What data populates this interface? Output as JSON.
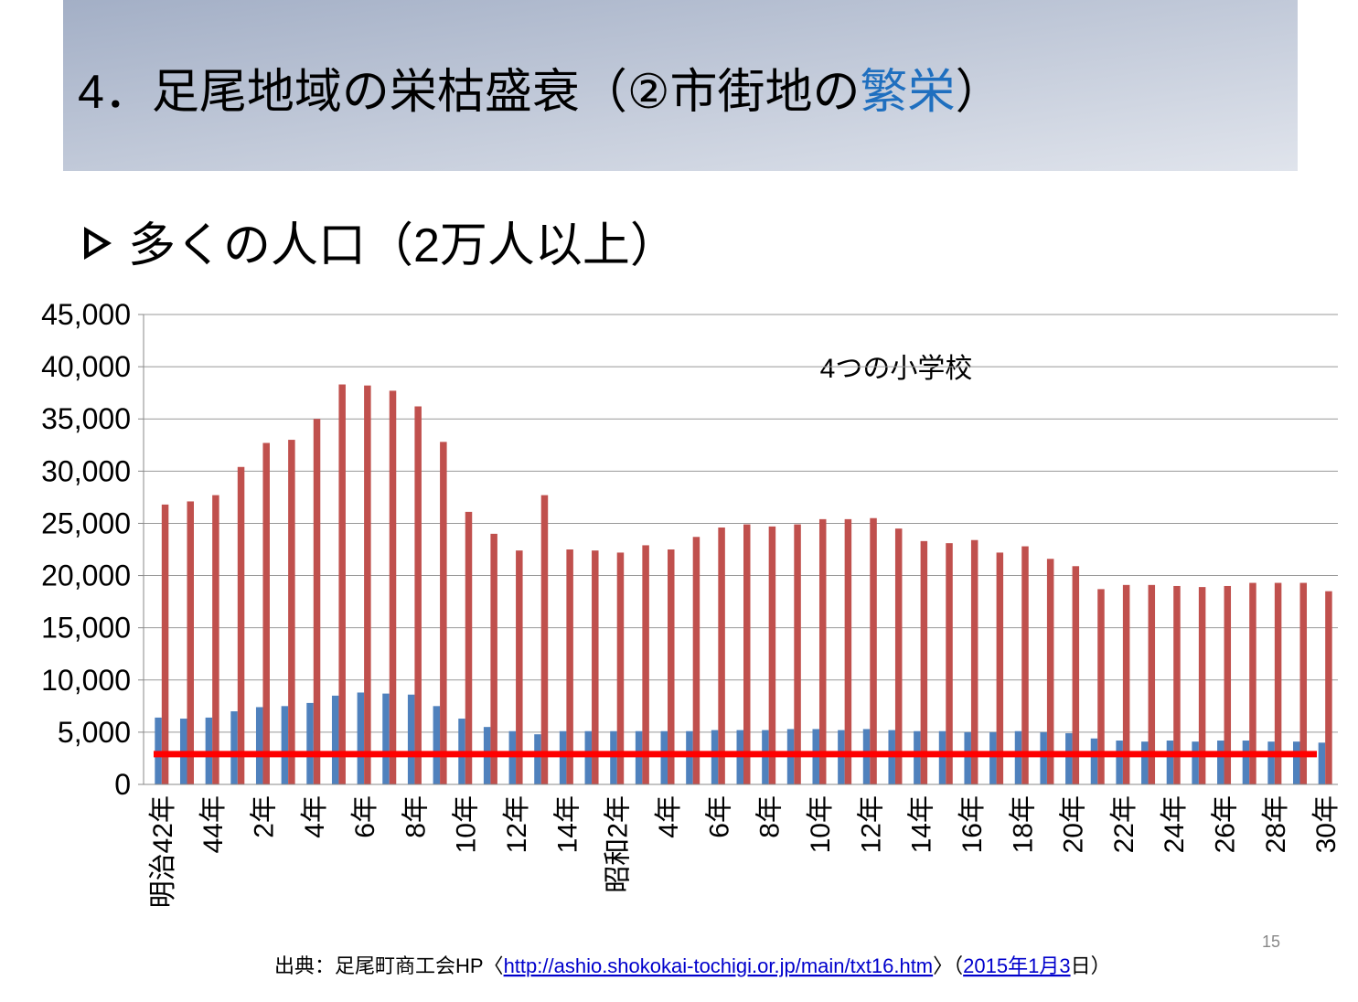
{
  "header": {
    "title_parts": [
      "4．足尾地域の栄枯盛衰（②市街地の",
      "繁栄",
      "）"
    ],
    "title_colors": [
      "#000000",
      "#1f6fbf",
      "#000000"
    ]
  },
  "bullet": "多くの人口（2万人以上）",
  "chart_data": {
    "type": "bar",
    "annotation": "4つの小学校",
    "categories": [
      "明治42年",
      null,
      "44年",
      null,
      "2年",
      null,
      "4年",
      null,
      "6年",
      null,
      "8年",
      null,
      "10年",
      null,
      "12年",
      null,
      "14年",
      null,
      "昭和2年",
      null,
      "4年",
      null,
      "6年",
      null,
      "8年",
      null,
      "10年",
      null,
      "12年",
      null,
      "14年",
      null,
      "16年",
      null,
      "18年",
      null,
      "20年",
      null,
      "22年",
      null,
      "24年",
      null,
      "26年",
      null,
      "28年",
      null,
      "30年"
    ],
    "series": [
      {
        "color": "#4f81bd",
        "values": [
          6400,
          6300,
          6400,
          7000,
          7400,
          7500,
          7800,
          8500,
          8800,
          8700,
          8600,
          7500,
          6300,
          5500,
          5100,
          4800,
          5100,
          5100,
          5100,
          5100,
          5100,
          5100,
          5200,
          5200,
          5200,
          5300,
          5300,
          5200,
          5300,
          5200,
          5100,
          5100,
          5000,
          5000,
          5100,
          5000,
          4900,
          4400,
          4200,
          4100,
          4200,
          4100,
          4200,
          4200,
          4100,
          4100,
          4000
        ]
      },
      {
        "color": "#c0504d",
        "values": [
          26800,
          27100,
          27700,
          30400,
          32700,
          33000,
          35000,
          38300,
          38200,
          37700,
          36200,
          32800,
          26100,
          24000,
          22400,
          27700,
          22500,
          22400,
          22200,
          22900,
          22500,
          23700,
          24600,
          24900,
          24700,
          24900,
          25400,
          25400,
          25500,
          24500,
          23300,
          23100,
          23400,
          22200,
          22800,
          21600,
          20900,
          18700,
          19100,
          19100,
          19000,
          18900,
          19000,
          19300,
          19300,
          19300,
          18500
        ]
      }
    ],
    "reference_line": {
      "value": 2900,
      "color": "#ff0000"
    },
    "ylim": [
      0,
      45000
    ],
    "yticks": [
      0,
      {
        "value": 5000,
        "label": "5,000"
      },
      {
        "value": 10000,
        "label": "10,000"
      },
      {
        "value": 15000,
        "label": "15,000"
      },
      {
        "value": 20000,
        "label": "20,000"
      },
      {
        "value": 25000,
        "label": "25,000"
      },
      {
        "value": 30000,
        "label": "30,000"
      },
      {
        "value": 35000,
        "label": "35,000"
      },
      {
        "value": 40000,
        "label": "40,000"
      },
      {
        "value": 45000,
        "label": "45,000"
      }
    ],
    "grid": true
  },
  "source": {
    "prefix": "出典：足尾町商工会HP〈",
    "link": "http://ashio.shokokai-tochigi.or.jp/main/txt16.htm",
    "middle": "〉（",
    "date": "2015年1月3",
    "suffix": "日）"
  },
  "page_number": "15"
}
